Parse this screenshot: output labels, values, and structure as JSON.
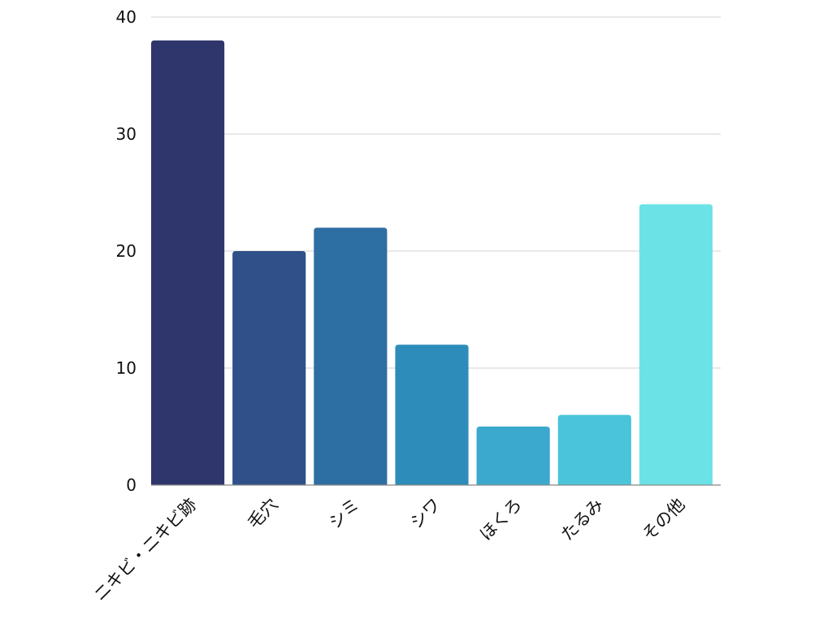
{
  "chart_data": {
    "type": "bar",
    "title": "",
    "xlabel": "",
    "ylabel": "",
    "categories": [
      "ニキビ・ニキビ跡",
      "毛穴",
      "シミ",
      "シワ",
      "ほくろ",
      "たるみ",
      "その他"
    ],
    "values": [
      38,
      20,
      22,
      12,
      5,
      6,
      24
    ],
    "colors": [
      "#2f366b",
      "#2f5089",
      "#2d6ea3",
      "#2e8cbb",
      "#3aa9cd",
      "#4ac4da",
      "#6be3e6"
    ],
    "ylim": [
      0,
      40
    ],
    "yticks": [
      0,
      10,
      20,
      30,
      40
    ],
    "grid": true,
    "legend": "none"
  }
}
